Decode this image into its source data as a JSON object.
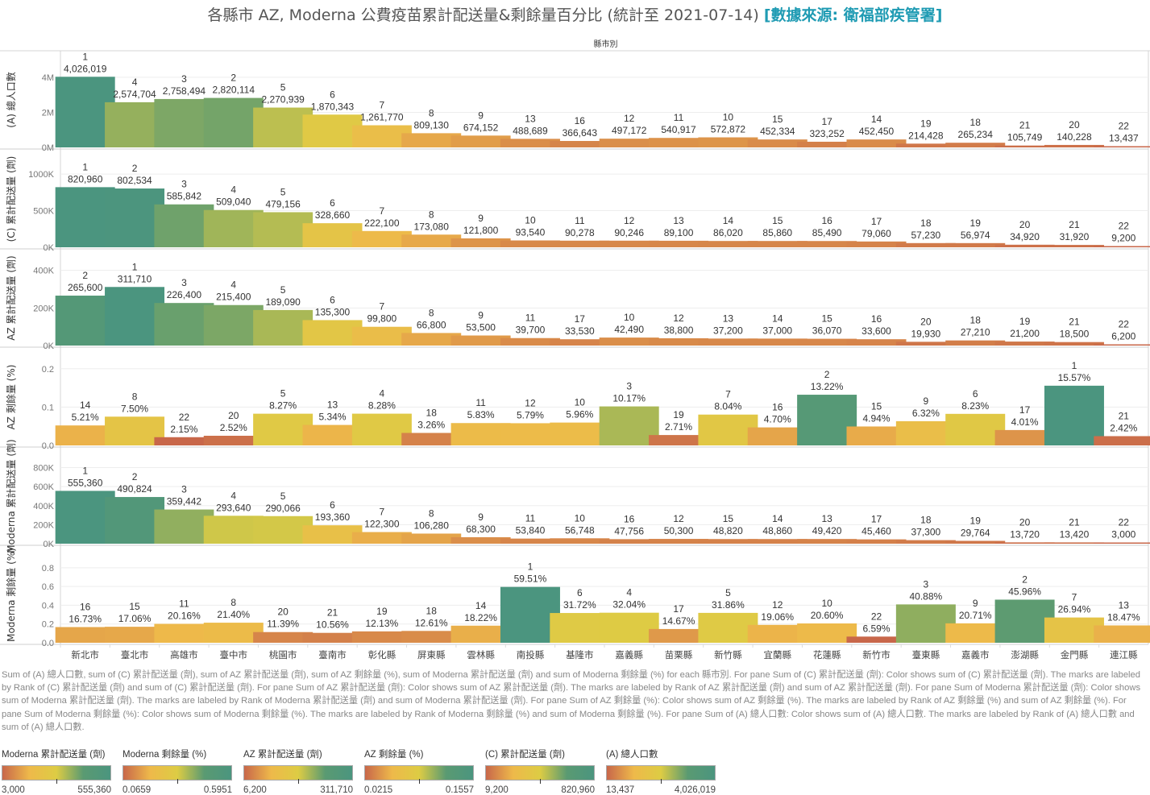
{
  "title": {
    "main": "各縣市 AZ, Moderna 公費疫苗累計配送量&剩餘量百分比 (統計至 2021-07-14)",
    "source": "[數據來源: 衛福部疾管署]"
  },
  "column_header": "縣市別",
  "chart_data": {
    "type": "bar",
    "title": "各縣市 AZ, Moderna 公費疫苗累計配送量&剩餘量百分比 (統計至 2021-07-14)",
    "xlabel": "縣市別",
    "categories": [
      "新北市",
      "臺北市",
      "高雄市",
      "臺中市",
      "桃園市",
      "臺南市",
      "彰化縣",
      "屏東縣",
      "雲林縣",
      "南投縣",
      "基隆市",
      "嘉義縣",
      "苗栗縣",
      "新竹縣",
      "宜蘭縣",
      "花蓮縣",
      "新竹市",
      "臺東縣",
      "嘉義市",
      "澎湖縣",
      "金門縣",
      "連江縣"
    ],
    "grid": true,
    "color_scale": [
      "#c8674a",
      "#eeb94a",
      "#ddcc44",
      "#5a9a72",
      "#4b957f"
    ],
    "series": [
      {
        "name": "(A) 總人口數",
        "ylabel": "(A) 總人口數",
        "ylim": [
          0,
          4500000
        ],
        "ticks": [
          0,
          2000000,
          4000000
        ],
        "tick_labels": [
          "0M",
          "2M",
          "4M"
        ],
        "color_range": [
          13437,
          4026019
        ],
        "values": [
          4026019,
          2574704,
          2758494,
          2820114,
          2270939,
          1870343,
          1261770,
          809130,
          674152,
          488689,
          366643,
          497172,
          540917,
          572872,
          452334,
          323252,
          452450,
          214428,
          265234,
          105749,
          140228,
          13437
        ],
        "value_labels": [
          "4,026,019",
          "2,574,704",
          "2,758,494",
          "2,820,114",
          "2,270,939",
          "1,870,343",
          "1,261,770",
          "809,130",
          "674,152",
          "488,689",
          "366,643",
          "497,172",
          "540,917",
          "572,872",
          "452,334",
          "323,252",
          "452,450",
          "214,428",
          "265,234",
          "105,749",
          "140,228",
          "13,437"
        ],
        "ranks": [
          1,
          4,
          3,
          2,
          5,
          6,
          7,
          8,
          9,
          13,
          16,
          12,
          11,
          10,
          15,
          17,
          14,
          19,
          18,
          21,
          20,
          22
        ]
      },
      {
        "name": "(C) 累計配送量 (劑)",
        "ylabel": "(C) 累計配送量 (劑)",
        "ylim": [
          0,
          1100000
        ],
        "ticks": [
          0,
          500000,
          1000000
        ],
        "tick_labels": [
          "0K",
          "500K",
          "1000K"
        ],
        "color_range": [
          9200,
          820960
        ],
        "values": [
          820960,
          802534,
          585842,
          509040,
          479156,
          328660,
          222100,
          173080,
          121800,
          93540,
          90278,
          90246,
          89100,
          86020,
          85860,
          85490,
          79060,
          57230,
          56974,
          34920,
          31920,
          9200
        ],
        "value_labels": [
          "820,960",
          "802,534",
          "585,842",
          "509,040",
          "479,156",
          "328,660",
          "222,100",
          "173,080",
          "121,800",
          "93,540",
          "90,278",
          "90,246",
          "89,100",
          "86,020",
          "85,860",
          "85,490",
          "79,060",
          "57,230",
          "56,974",
          "34,920",
          "31,920",
          "9,200"
        ],
        "ranks": [
          1,
          2,
          3,
          4,
          5,
          6,
          7,
          8,
          9,
          10,
          11,
          12,
          13,
          14,
          15,
          16,
          17,
          18,
          19,
          20,
          21,
          22
        ]
      },
      {
        "name": "AZ 累計配送量 (劑)",
        "ylabel": "AZ 累計配送量 (劑)",
        "ylim": [
          0,
          420000
        ],
        "ticks": [
          0,
          200000,
          400000
        ],
        "tick_labels": [
          "0K",
          "200K",
          "400K"
        ],
        "color_range": [
          6200,
          311710
        ],
        "values": [
          265600,
          311710,
          226400,
          215400,
          189090,
          135300,
          99800,
          66800,
          53500,
          39700,
          33530,
          42490,
          38800,
          37200,
          37000,
          36070,
          33600,
          19930,
          27210,
          21200,
          18500,
          6200
        ],
        "value_labels": [
          "265,600",
          "311,710",
          "226,400",
          "215,400",
          "189,090",
          "135,300",
          "99,800",
          "66,800",
          "53,500",
          "39,700",
          "33,530",
          "42,490",
          "38,800",
          "37,200",
          "37,000",
          "36,070",
          "33,600",
          "19,930",
          "27,210",
          "21,200",
          "18,500",
          "6,200"
        ],
        "ranks": [
          2,
          1,
          3,
          4,
          5,
          6,
          7,
          8,
          9,
          11,
          17,
          10,
          12,
          13,
          14,
          15,
          16,
          20,
          18,
          19,
          21,
          22
        ]
      },
      {
        "name": "AZ 剩餘量 (%)",
        "ylabel": "AZ 剩餘量 (%)",
        "ylim": [
          0,
          0.21
        ],
        "ticks": [
          0,
          0.1,
          0.2
        ],
        "tick_labels": [
          "0.0",
          "0.1",
          "0.2"
        ],
        "color_range": [
          0.0215,
          0.1557
        ],
        "values": [
          0.0521,
          0.075,
          0.0215,
          0.0252,
          0.0827,
          0.0534,
          0.0828,
          0.0326,
          0.0583,
          0.0579,
          0.0596,
          0.1017,
          0.0271,
          0.0804,
          0.047,
          0.1322,
          0.0494,
          0.0632,
          0.0823,
          0.0401,
          0.1557,
          0.0242
        ],
        "value_labels": [
          "5.21%",
          "7.50%",
          "2.15%",
          "2.52%",
          "8.27%",
          "5.34%",
          "8.28%",
          "3.26%",
          "5.83%",
          "5.79%",
          "5.96%",
          "10.17%",
          "2.71%",
          "8.04%",
          "4.70%",
          "13.22%",
          "4.94%",
          "6.32%",
          "8.23%",
          "4.01%",
          "15.57%",
          "2.42%"
        ],
        "ranks": [
          14,
          8,
          22,
          20,
          5,
          13,
          4,
          18,
          11,
          12,
          10,
          3,
          19,
          7,
          16,
          2,
          15,
          9,
          6,
          17,
          1,
          21
        ]
      },
      {
        "name": "Moderna 累計配送量 (劑)",
        "ylabel": "Moderna 累計配送量 (劑)",
        "ylim": [
          0,
          830000
        ],
        "ticks": [
          0,
          200000,
          400000,
          600000,
          800000
        ],
        "tick_labels": [
          "0K",
          "200K",
          "400K",
          "600K",
          "800K"
        ],
        "color_range": [
          3000,
          555360
        ],
        "values": [
          555360,
          490824,
          359442,
          293640,
          290066,
          193360,
          122300,
          106280,
          68300,
          53840,
          56748,
          47756,
          50300,
          48820,
          48860,
          49420,
          45460,
          37300,
          29764,
          13720,
          13420,
          3000
        ],
        "value_labels": [
          "555,360",
          "490,824",
          "359,442",
          "293,640",
          "290,066",
          "193,360",
          "122,300",
          "106,280",
          "68,300",
          "53,840",
          "56,748",
          "47,756",
          "50,300",
          "48,820",
          "48,860",
          "49,420",
          "45,460",
          "37,300",
          "29,764",
          "13,720",
          "13,420",
          "3,000"
        ],
        "ranks": [
          1,
          2,
          3,
          4,
          5,
          6,
          7,
          8,
          9,
          11,
          10,
          16,
          12,
          15,
          14,
          13,
          17,
          18,
          19,
          20,
          21,
          22
        ]
      },
      {
        "name": "Moderna 剩餘量 (%)",
        "ylabel": "Moderna 剩餘量 (%)",
        "ylim": [
          0,
          0.85
        ],
        "ticks": [
          0,
          0.2,
          0.4,
          0.6,
          0.8
        ],
        "tick_labels": [
          "0.0",
          "0.2",
          "0.4",
          "0.6",
          "0.8"
        ],
        "color_range": [
          0.0659,
          0.5951
        ],
        "values": [
          0.1673,
          0.1706,
          0.2016,
          0.214,
          0.1139,
          0.1056,
          0.1213,
          0.1261,
          0.1822,
          0.5951,
          0.3172,
          0.3204,
          0.1467,
          0.3186,
          0.1906,
          0.206,
          0.0659,
          0.4088,
          0.2071,
          0.4596,
          0.2694,
          0.1847
        ],
        "value_labels": [
          "16.73%",
          "17.06%",
          "20.16%",
          "21.40%",
          "11.39%",
          "10.56%",
          "12.13%",
          "12.61%",
          "18.22%",
          "59.51%",
          "31.72%",
          "32.04%",
          "14.67%",
          "31.86%",
          "19.06%",
          "20.60%",
          "6.59%",
          "40.88%",
          "20.71%",
          "45.96%",
          "26.94%",
          "18.47%"
        ],
        "ranks": [
          16,
          15,
          11,
          8,
          20,
          21,
          19,
          18,
          14,
          1,
          6,
          4,
          17,
          5,
          12,
          10,
          22,
          3,
          9,
          2,
          7,
          13
        ]
      }
    ]
  },
  "caption": "Sum of (A) 總人口數, sum of (C) 累計配送量 (劑), sum of AZ 累計配送量 (劑), sum of AZ 剩餘量 (%), sum of Moderna 累計配送量 (劑) and sum of Moderna 剩餘量 (%) for each 縣市別.  For pane Sum of (C) 累計配送量 (劑):  Color shows sum of (C) 累計配送量 (劑).  The marks are labeled by Rank of (C) 累計配送量 (劑) and sum of (C) 累計配送量 (劑).  For pane Sum of AZ 累計配送量 (劑):  Color shows sum of AZ 累計配送量 (劑).  The marks are labeled by Rank of AZ 累計配送量 (劑) and sum of AZ 累計配送量 (劑).  For pane Sum of Moderna 累計配送量 (劑):  Color shows sum of Moderna 累計配送量 (劑).  The marks are labeled by Rank of Moderna 累計配送量 (劑) and sum of Moderna 累計配送量 (劑).  For pane Sum of AZ 剩餘量 (%):  Color shows sum of AZ 剩餘量 (%).  The marks are labeled by Rank of AZ 剩餘量 (%) and sum of AZ 剩餘量 (%).  For pane Sum of Moderna 剩餘量 (%):  Color shows sum of Moderna 剩餘量 (%).  The marks are labeled by Rank of Moderna 剩餘量 (%) and sum of Moderna 剩餘量 (%).  For pane Sum of (A) 總人口數:  Color shows sum of (A) 總人口數.  The marks are labeled by Rank of (A) 總人口數 and sum of (A) 總人口數.",
  "legends": [
    {
      "title": "Moderna 累計配送量 (劑)",
      "min": "3,000",
      "max": "555,360"
    },
    {
      "title": "Moderna 剩餘量 (%)",
      "min": "0.0659",
      "max": "0.5951"
    },
    {
      "title": "AZ 累計配送量 (劑)",
      "min": "6,200",
      "max": "311,710"
    },
    {
      "title": "AZ 剩餘量 (%)",
      "min": "0.0215",
      "max": "0.1557"
    },
    {
      "title": "(C) 累計配送量 (劑)",
      "min": "9,200",
      "max": "820,960"
    },
    {
      "title": "(A) 總人口數",
      "min": "13,437",
      "max": "4,026,019"
    }
  ]
}
